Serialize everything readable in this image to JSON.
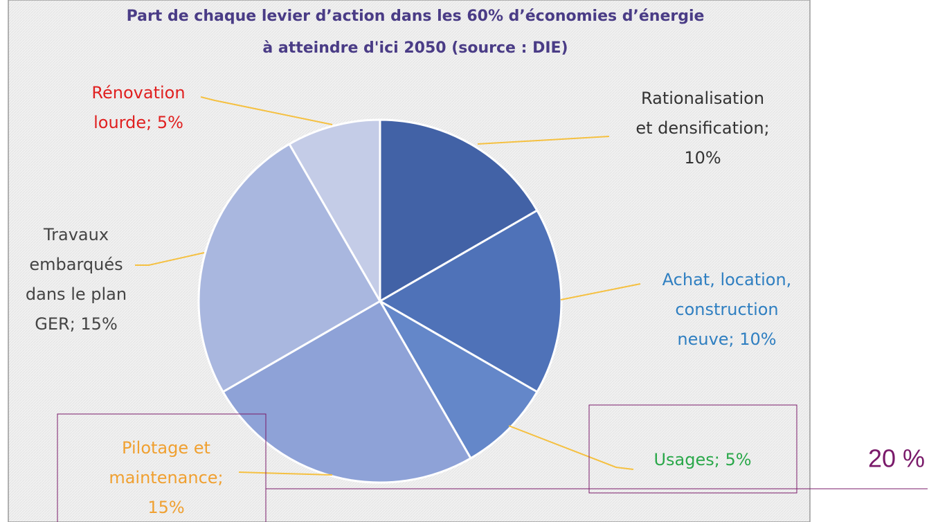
{
  "chart_data": {
    "type": "pie",
    "title": [
      "Part de chaque levier d’action dans les 60% d’économies d’énergie",
      "à atteindre d'ici 2050 (source : DIE)"
    ],
    "labels": [
      [
        "Rationalisation",
        "et densification;",
        "10%"
      ],
      [
        "Achat, location,",
        "construction",
        "neuve; 10%"
      ],
      [
        "Usages; 5%"
      ],
      [
        "Pilotage et",
        "maintenance;",
        "15%"
      ],
      [
        "Travaux",
        "embarqués",
        "dans le plan",
        "GER; 15%"
      ],
      [
        "Rénovation",
        "lourde; 5%"
      ]
    ],
    "values": [
      10,
      10,
      5,
      15,
      15,
      5
    ],
    "colors": [
      "#4262a6",
      "#4f72b8",
      "#6487c9",
      "#8ea2d7",
      "#a9b7df",
      "#c4cce7"
    ],
    "label_colors": [
      "#333333",
      "#2f7fc1",
      "#2aa84a",
      "#f0a030",
      "#444444",
      "#e02020"
    ],
    "annotation": "20 %"
  }
}
